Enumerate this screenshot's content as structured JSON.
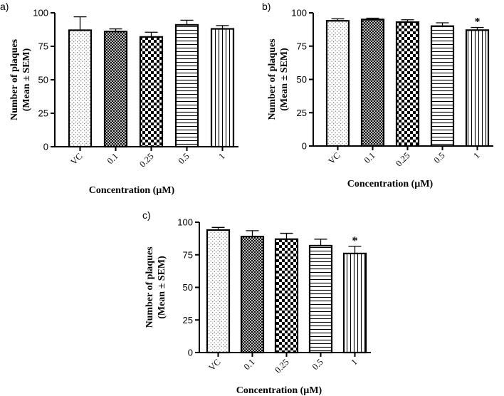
{
  "chart_data": [
    {
      "type": "bar",
      "panel_label": "a)",
      "categories": [
        "VC",
        "0.1",
        "0.25",
        "0.5",
        "1"
      ],
      "values": [
        87,
        86,
        82,
        91,
        88
      ],
      "errors": [
        10,
        2,
        3.5,
        3.5,
        2.5
      ],
      "significance": [
        "",
        "",
        "",
        "",
        ""
      ],
      "patterns": [
        "dots",
        "crosshatch",
        "checker",
        "hlines",
        "vlines"
      ],
      "ylim": [
        0,
        100
      ],
      "yticks": [
        0,
        25,
        50,
        75,
        100
      ],
      "ylabel": [
        "Number of plaques",
        "(Mean ± SEM)"
      ],
      "xlabel": "Concentration (µM)"
    },
    {
      "type": "bar",
      "panel_label": "b)",
      "categories": [
        "VC",
        "0.1",
        "0.25",
        "0.5",
        "1"
      ],
      "values": [
        94,
        95,
        93,
        90,
        87
      ],
      "errors": [
        1.5,
        1,
        1.8,
        2.5,
        2
      ],
      "significance": [
        "",
        "",
        "",
        "",
        "*"
      ],
      "patterns": [
        "dots",
        "crosshatch",
        "checker",
        "hlines",
        "vlines"
      ],
      "ylim": [
        0,
        100
      ],
      "yticks": [
        0,
        25,
        50,
        75,
        100
      ],
      "ylabel": [
        "Number of plaques",
        "(Mean ± SEM)"
      ],
      "xlabel": "Concentration (µM)"
    },
    {
      "type": "bar",
      "panel_label": "c)",
      "categories": [
        "VC",
        "0.1",
        "0.25",
        "0.5",
        "1"
      ],
      "values": [
        94,
        89,
        87,
        82,
        76
      ],
      "errors": [
        2,
        4.5,
        4.5,
        5,
        5.5
      ],
      "significance": [
        "",
        "",
        "",
        "",
        "*"
      ],
      "patterns": [
        "dots",
        "crosshatch",
        "checker",
        "hlines",
        "vlines"
      ],
      "ylim": [
        0,
        100
      ],
      "yticks": [
        0,
        25,
        50,
        75,
        100
      ],
      "ylabel": [
        "Number of plaques",
        "(Mean ± SEM)"
      ],
      "xlabel": "Concentration (µM)"
    }
  ]
}
